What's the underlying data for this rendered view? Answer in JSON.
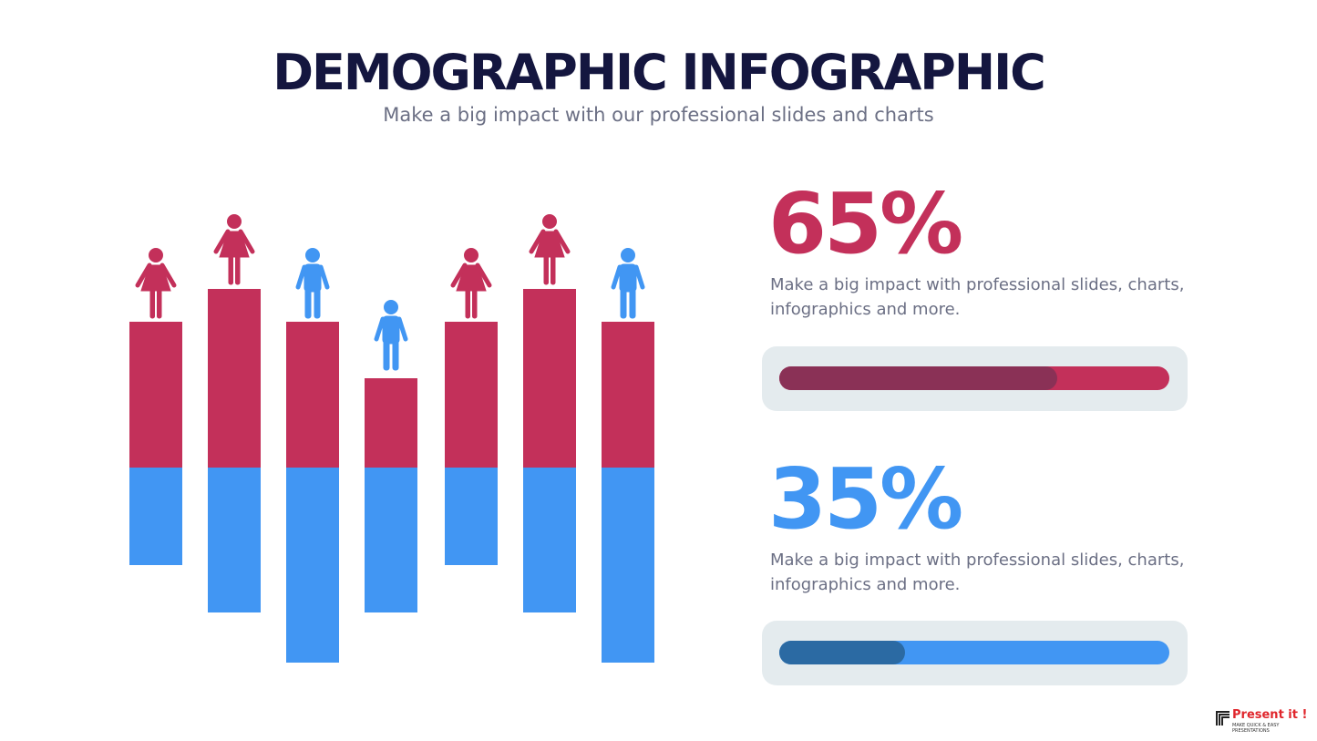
{
  "header": {
    "title": "DEMOGRAPHIC INFOGRAPHIC",
    "subtitle": "Make a big impact with our professional slides and charts"
  },
  "stats": [
    {
      "value": "65%",
      "text": "Make a big impact with professional slides, charts, infographics and more."
    },
    {
      "value": "35%",
      "text": "Make a big impact with professional slides, charts, infographics and more."
    }
  ],
  "logo": {
    "name": "Present it !",
    "tagline": "MAKE QUICK & EASY PRESENTATIONS"
  }
}
